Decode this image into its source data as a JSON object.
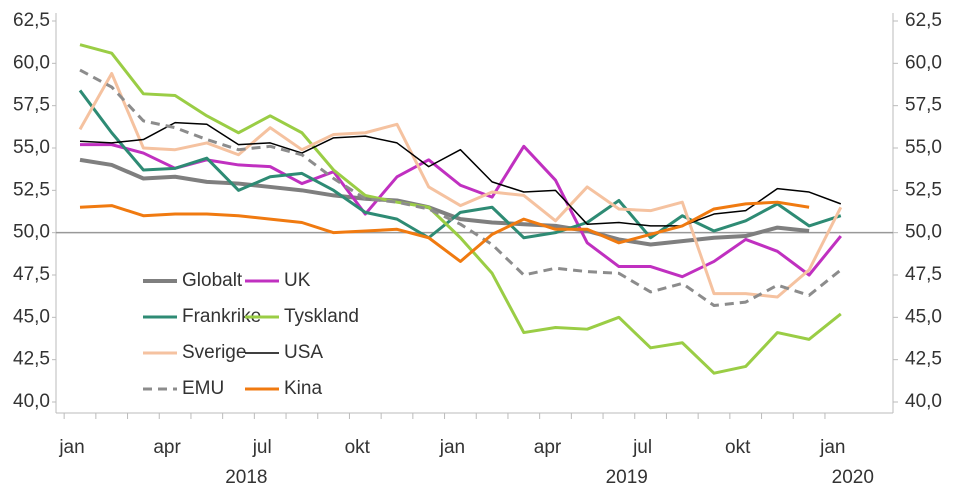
{
  "chart_data": {
    "type": "line",
    "categories": [
      "jan",
      null,
      null,
      "apr",
      null,
      null,
      "jul",
      null,
      null,
      "okt",
      null,
      null,
      "jan",
      null,
      null,
      "apr",
      null,
      null,
      "jul",
      null,
      null,
      "okt",
      null,
      null,
      "jan"
    ],
    "years": [
      "2018",
      "2019",
      "2020"
    ],
    "ylim": [
      40,
      62.5
    ],
    "yticks": [
      {
        "value": 40,
        "label": "40,0"
      },
      {
        "value": 42.5,
        "label": "42,5"
      },
      {
        "value": 45,
        "label": "45,0"
      },
      {
        "value": 47.5,
        "label": "47,5"
      },
      {
        "value": 50,
        "label": "50,0"
      },
      {
        "value": 52.5,
        "label": "52,5"
      },
      {
        "value": 55,
        "label": "55,0"
      },
      {
        "value": 57.5,
        "label": "57,5"
      },
      {
        "value": 60,
        "label": "60,0"
      },
      {
        "value": 62.5,
        "label": "62,5"
      }
    ],
    "y2lim": [
      40,
      62.5
    ],
    "y2ticks": [
      {
        "value": 40,
        "label": "40,0"
      },
      {
        "value": 42.5,
        "label": "42,5"
      },
      {
        "value": 45,
        "label": "45,0"
      },
      {
        "value": 47.5,
        "label": "47,5"
      },
      {
        "value": 50,
        "label": "50,0"
      },
      {
        "value": 52.5,
        "label": "52,5"
      },
      {
        "value": 55,
        "label": "55,0"
      },
      {
        "value": 57.5,
        "label": "57,5"
      },
      {
        "value": 60,
        "label": "60,0"
      },
      {
        "value": 62.5,
        "label": "62,5"
      }
    ],
    "reference_line": 50,
    "series": [
      {
        "name": "Globalt",
        "color": "#7f7f7f",
        "width": 4,
        "values": [
          54.3,
          54.0,
          53.2,
          53.3,
          53.0,
          52.9,
          52.7,
          52.5,
          52.2,
          52.0,
          51.9,
          51.5,
          50.8,
          50.6,
          50.5,
          50.4,
          50.1,
          49.6,
          49.3,
          49.5,
          49.7,
          49.8,
          50.3,
          50.1,
          null
        ]
      },
      {
        "name": "UK",
        "color": "#c030c0",
        "width": 3,
        "values": [
          55.2,
          55.2,
          54.7,
          53.8,
          54.3,
          54.0,
          53.9,
          52.9,
          53.6,
          51.1,
          53.3,
          54.3,
          52.8,
          52.1,
          55.1,
          53.1,
          49.4,
          48.0,
          48.0,
          47.4,
          48.3,
          49.6,
          48.9,
          47.5,
          49.8
        ]
      },
      {
        "name": "Frankrike",
        "color": "#2e8b74",
        "width": 3,
        "values": [
          58.4,
          55.9,
          53.7,
          53.8,
          54.4,
          52.5,
          53.3,
          53.5,
          52.5,
          51.2,
          50.8,
          49.7,
          51.2,
          51.5,
          49.7,
          50.0,
          50.6,
          51.9,
          49.7,
          51.0,
          50.1,
          50.7,
          51.7,
          50.4,
          51.0
        ]
      },
      {
        "name": "Tyskland",
        "color": "#9acd45",
        "width": 3,
        "values": [
          61.1,
          60.6,
          58.2,
          58.1,
          56.9,
          55.9,
          56.9,
          55.9,
          53.7,
          52.2,
          51.8,
          51.5,
          49.7,
          47.6,
          44.1,
          44.4,
          44.3,
          45.0,
          43.2,
          43.5,
          41.7,
          42.1,
          44.1,
          43.7,
          45.2
        ]
      },
      {
        "name": "Sverige",
        "color": "#f5c2a0",
        "width": 3,
        "values": [
          56.1,
          59.4,
          55.0,
          54.9,
          55.3,
          54.6,
          56.2,
          54.9,
          55.8,
          55.9,
          56.4,
          52.7,
          51.6,
          52.4,
          52.2,
          50.7,
          52.7,
          51.4,
          51.3,
          51.8,
          46.4,
          46.4,
          46.2,
          47.8,
          51.5
        ]
      },
      {
        "name": "USA",
        "color": "#000000",
        "width": 1.5,
        "values": [
          55.4,
          55.3,
          55.5,
          56.5,
          56.4,
          55.2,
          55.3,
          54.7,
          55.6,
          55.7,
          55.3,
          53.9,
          54.9,
          53.0,
          52.4,
          52.5,
          50.5,
          50.6,
          50.4,
          50.4,
          51.1,
          51.3,
          52.6,
          52.4,
          51.7
        ]
      },
      {
        "name": "EMU",
        "color": "#8c8c8c",
        "width": 3,
        "dash": true,
        "values": [
          59.6,
          58.6,
          56.6,
          56.2,
          55.5,
          54.9,
          55.1,
          54.6,
          53.2,
          52.0,
          51.8,
          51.4,
          50.5,
          49.3,
          47.5,
          47.9,
          47.7,
          47.6,
          46.5,
          47.0,
          45.7,
          45.9,
          46.9,
          46.3,
          47.8
        ]
      },
      {
        "name": "Kina",
        "color": "#f07a10",
        "width": 3,
        "values": [
          51.5,
          51.6,
          51.0,
          51.1,
          51.1,
          51.0,
          50.8,
          50.6,
          50.0,
          50.1,
          50.2,
          49.7,
          48.3,
          49.9,
          50.8,
          50.2,
          50.2,
          49.4,
          49.9,
          50.4,
          51.4,
          51.7,
          51.8,
          51.5,
          null
        ]
      }
    ]
  }
}
